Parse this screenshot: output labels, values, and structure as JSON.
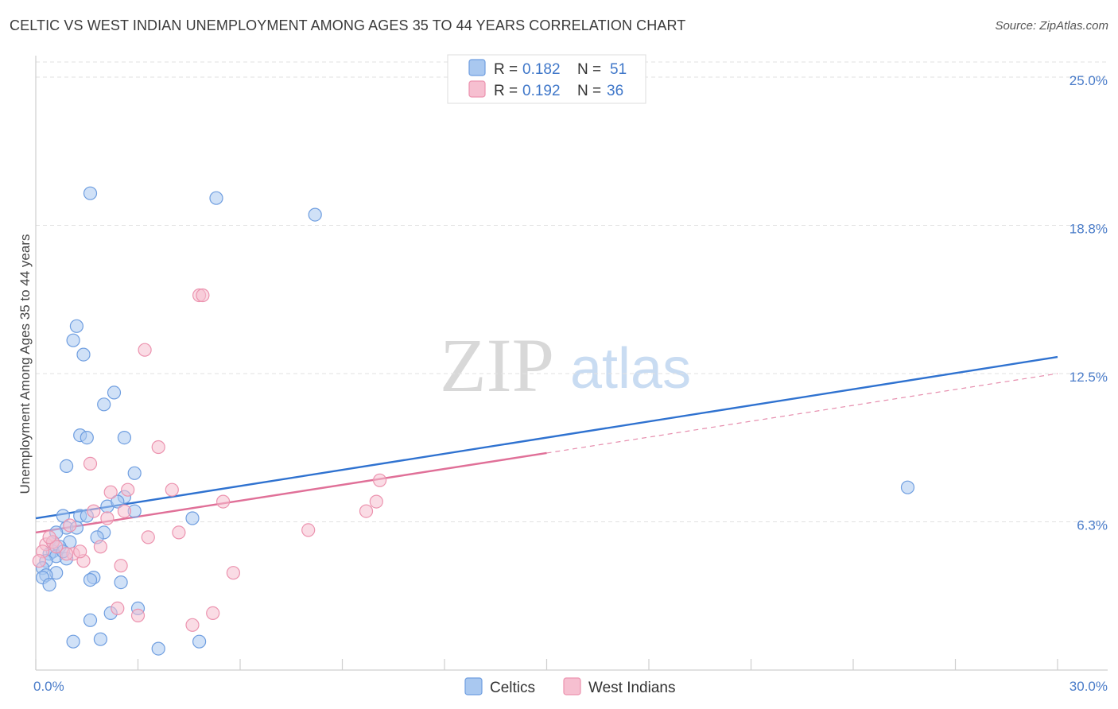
{
  "title": "CELTIC VS WEST INDIAN UNEMPLOYMENT AMONG AGES 35 TO 44 YEARS CORRELATION CHART",
  "source": "Source: ZipAtlas.com",
  "watermark": {
    "zip": "ZIP",
    "atlas": "atlas"
  },
  "colors": {
    "celtic_fill": "#a9c8f0",
    "celtic_stroke": "#6f9ee0",
    "celtic_line": "#2f72d0",
    "west_fill": "#f6bfd0",
    "west_stroke": "#ec93af",
    "west_line": "#e07098",
    "grid": "#e2e2e2",
    "axis_text": "#4a7cc9"
  },
  "legend": {
    "celtic": {
      "r_label": "R =",
      "r_value": "0.182",
      "n_label": "N =",
      "n_value": "51"
    },
    "west": {
      "r_label": "R =",
      "r_value": "0.192",
      "n_label": "N =",
      "n_value": "36"
    }
  },
  "chart_data": {
    "type": "scatter",
    "title": "CELTIC VS WEST INDIAN UNEMPLOYMENT AMONG AGES 35 TO 44 YEARS CORRELATION CHART",
    "xlabel": "",
    "ylabel": "Unemployment Among Ages 35 to 44 years",
    "xlim": [
      0,
      30
    ],
    "ylim": [
      0,
      25
    ],
    "x_tick_labels": {
      "left": "0.0%",
      "right": "30.0%"
    },
    "y_ticks": [
      {
        "value": 6.25,
        "label": "6.3%"
      },
      {
        "value": 12.5,
        "label": "12.5%"
      },
      {
        "value": 18.75,
        "label": "18.8%"
      },
      {
        "value": 25.0,
        "label": "25.0%"
      }
    ],
    "legend_position": "top-center",
    "series": [
      {
        "name": "Celtics",
        "r": 0.182,
        "n": 51,
        "trend": {
          "x0": 0,
          "y0": 6.4,
          "x1": 30,
          "y1": 13.2,
          "dashed_from": null
        },
        "points": [
          [
            1.6,
            20.1
          ],
          [
            5.3,
            19.9
          ],
          [
            8.2,
            19.2
          ],
          [
            1.2,
            14.5
          ],
          [
            1.1,
            13.9
          ],
          [
            1.4,
            13.3
          ],
          [
            2.3,
            11.7
          ],
          [
            2.0,
            11.2
          ],
          [
            1.3,
            9.9
          ],
          [
            1.5,
            9.8
          ],
          [
            2.6,
            9.8
          ],
          [
            0.9,
            8.6
          ],
          [
            2.9,
            8.3
          ],
          [
            2.6,
            7.3
          ],
          [
            2.1,
            6.9
          ],
          [
            2.9,
            6.7
          ],
          [
            0.8,
            6.5
          ],
          [
            1.3,
            6.5
          ],
          [
            1.5,
            6.5
          ],
          [
            4.6,
            6.4
          ],
          [
            0.9,
            6.0
          ],
          [
            0.6,
            5.8
          ],
          [
            2.0,
            5.8
          ],
          [
            1.8,
            5.6
          ],
          [
            1.0,
            5.4
          ],
          [
            0.7,
            5.2
          ],
          [
            0.5,
            5.0
          ],
          [
            0.4,
            4.9
          ],
          [
            0.6,
            4.8
          ],
          [
            0.9,
            4.7
          ],
          [
            0.3,
            4.6
          ],
          [
            0.2,
            4.3
          ],
          [
            0.6,
            4.1
          ],
          [
            0.3,
            4.0
          ],
          [
            0.2,
            3.9
          ],
          [
            1.7,
            3.9
          ],
          [
            1.6,
            3.8
          ],
          [
            2.5,
            3.7
          ],
          [
            0.4,
            3.6
          ],
          [
            3.0,
            2.6
          ],
          [
            2.2,
            2.4
          ],
          [
            1.6,
            2.1
          ],
          [
            1.9,
            1.3
          ],
          [
            1.1,
            1.2
          ],
          [
            4.8,
            1.2
          ],
          [
            3.6,
            0.9
          ],
          [
            25.6,
            7.7
          ],
          [
            0.8,
            5.0
          ],
          [
            1.2,
            6.0
          ],
          [
            0.5,
            5.4
          ],
          [
            2.4,
            7.1
          ]
        ]
      },
      {
        "name": "West Indians",
        "r": 0.192,
        "n": 36,
        "trend": {
          "x0": 0,
          "y0": 5.8,
          "x1": 30,
          "y1": 12.5,
          "dashed_from": 15.0
        },
        "points": [
          [
            4.8,
            15.8
          ],
          [
            4.9,
            15.8
          ],
          [
            3.2,
            13.5
          ],
          [
            3.6,
            9.4
          ],
          [
            1.6,
            8.7
          ],
          [
            10.1,
            8.0
          ],
          [
            2.7,
            7.6
          ],
          [
            2.2,
            7.5
          ],
          [
            4.0,
            7.6
          ],
          [
            5.5,
            7.1
          ],
          [
            10.0,
            7.1
          ],
          [
            9.7,
            6.7
          ],
          [
            2.6,
            6.7
          ],
          [
            1.7,
            6.7
          ],
          [
            2.1,
            6.4
          ],
          [
            1.0,
            6.1
          ],
          [
            8.0,
            5.9
          ],
          [
            4.2,
            5.8
          ],
          [
            3.3,
            5.6
          ],
          [
            0.3,
            5.3
          ],
          [
            0.5,
            5.4
          ],
          [
            1.9,
            5.2
          ],
          [
            0.2,
            5.0
          ],
          [
            1.1,
            4.9
          ],
          [
            0.9,
            4.9
          ],
          [
            1.4,
            4.6
          ],
          [
            2.5,
            4.4
          ],
          [
            5.8,
            4.1
          ],
          [
            2.4,
            2.6
          ],
          [
            5.2,
            2.4
          ],
          [
            3.0,
            2.3
          ],
          [
            4.6,
            1.9
          ],
          [
            0.1,
            4.6
          ],
          [
            0.6,
            5.2
          ],
          [
            1.3,
            5.0
          ],
          [
            0.4,
            5.6
          ]
        ]
      }
    ]
  }
}
